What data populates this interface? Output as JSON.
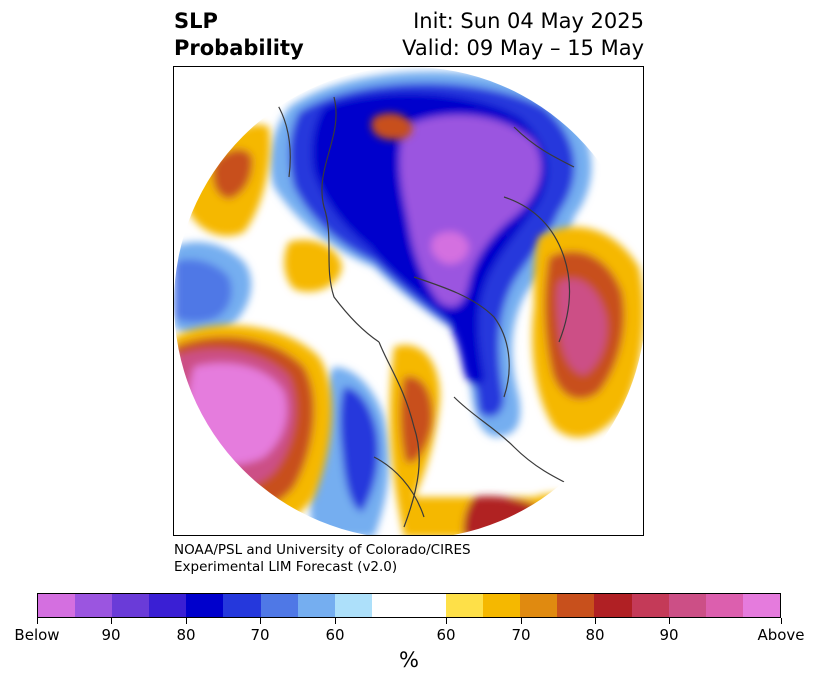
{
  "title": {
    "line1_left": "SLP",
    "line2_left": "Probability",
    "line1_right": "Init: Sun 04 May 2025",
    "line2_right": "Valid: 09 May – 15 May"
  },
  "credit": {
    "line1": "NOAA/PSL and University of Colorado/CIRES",
    "line2": "Experimental LIM Forecast (v2.0)"
  },
  "colorbar": {
    "unit": "%",
    "colors": [
      "#d46fe0",
      "#9b55e0",
      "#6a3bd8",
      "#3a1fd4",
      "#0000cc",
      "#2538dc",
      "#4f78e6",
      "#75aef0",
      "#ade0fa",
      "#ffffff",
      "#fee048",
      "#f5b800",
      "#e08a10",
      "#c8501c",
      "#b02024",
      "#c43a58",
      "#cc4f86",
      "#dc5fae",
      "#e57bdd"
    ],
    "tick_labels": [
      "Below",
      "90",
      "80",
      "70",
      "60",
      "60",
      "70",
      "80",
      "90",
      "Above"
    ]
  },
  "colors": {
    "below_high": "#9b55e0",
    "below_mid": "#0000cc",
    "below_low": "#75aef0",
    "above_low": "#f5b800",
    "above_mid": "#c8501c",
    "above_high": "#e57bdd"
  }
}
